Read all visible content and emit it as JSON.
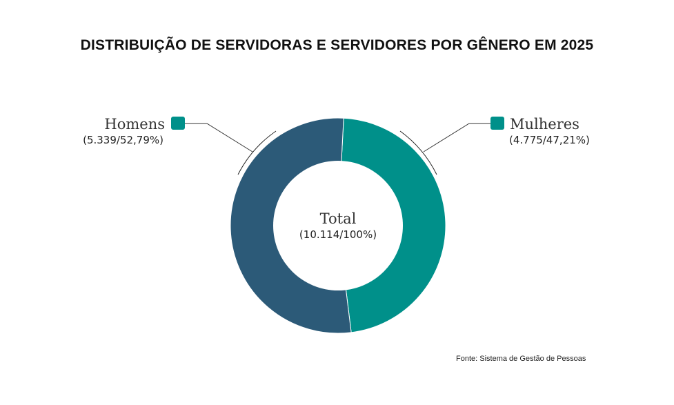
{
  "chart_data": {
    "type": "pie",
    "title": "DISTRIBUIÇÃO DE SERVIDORAS E SERVIDORES POR GÊNERO EM 2025",
    "categories": [
      "Mulheres",
      "Homens"
    ],
    "values": [
      4775,
      5339
    ],
    "value_labels": [
      "(4.775/47,21%)",
      "(5.339/52,79%)"
    ],
    "percentages": [
      47.21,
      52.79
    ],
    "colors": [
      "#00908a",
      "#2c5a78"
    ],
    "legend_swatch_color": "#00908a",
    "donut": true,
    "center_label": "Total",
    "center_value": "(10.114/100%)",
    "source": "Fonte: Sistema de Gestão de Pessoas"
  }
}
